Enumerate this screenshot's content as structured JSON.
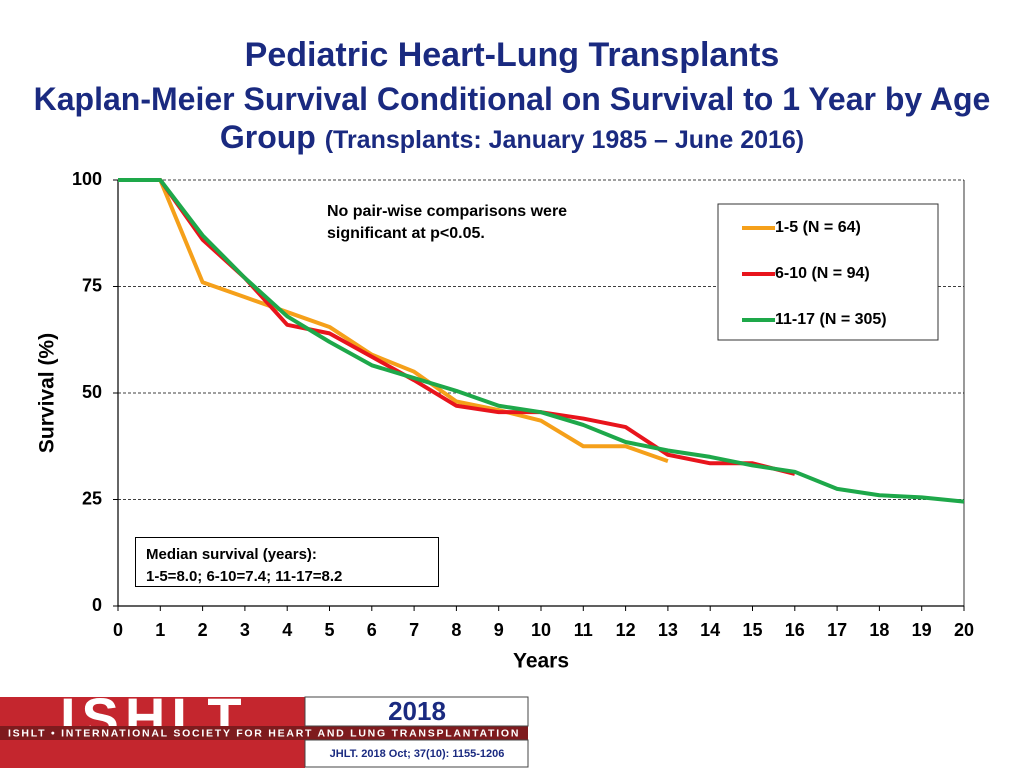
{
  "chart_data": {
    "type": "line",
    "title": "Pediatric Heart-Lung Transplants",
    "subtitle": "Kaplan-Meier Survival Conditional on Survival to 1 Year by Age Group",
    "subtitle_note": "(Transplants: January 1985 – June 2016)",
    "x_label": "Years",
    "y_label": "Survival (%)",
    "x": [
      0,
      1,
      2,
      3,
      4,
      5,
      6,
      7,
      8,
      9,
      10,
      11,
      12,
      13,
      14,
      15,
      16,
      17,
      18,
      19,
      20
    ],
    "series": [
      {
        "name": "1-5 (N = 64)",
        "color": "#f5a01a",
        "values": [
          100,
          100,
          76,
          72.5,
          69,
          65.5,
          59,
          55,
          48,
          46,
          43.5,
          37.5,
          37.5,
          34,
          null,
          null,
          null,
          null,
          null,
          null,
          null
        ]
      },
      {
        "name": "6-10 (N = 94)",
        "color": "#e8141c",
        "values": [
          100,
          100,
          86,
          77,
          66,
          64,
          58.5,
          53,
          47,
          45.5,
          45.5,
          44,
          42,
          35.5,
          33.5,
          33.5,
          31,
          null,
          null,
          null,
          null
        ]
      },
      {
        "name": "11-17 (N = 305)",
        "color": "#1ea84a",
        "values": [
          100,
          100,
          87,
          77,
          68,
          62,
          56.5,
          53.5,
          50.5,
          47,
          45.5,
          42.5,
          38.5,
          36.5,
          35,
          33,
          31.5,
          27.5,
          26,
          25.5,
          24.5
        ]
      }
    ],
    "xlim": [
      0,
      20
    ],
    "xticks": [
      0,
      1,
      2,
      3,
      4,
      5,
      6,
      7,
      8,
      9,
      10,
      11,
      12,
      13,
      14,
      15,
      16,
      17,
      18,
      19,
      20
    ],
    "ylim": [
      0,
      100
    ],
    "yticks": [
      0,
      25,
      50,
      75,
      100
    ],
    "grid": true,
    "legend": "upper right",
    "annotations": [
      "No pair-wise comparisons were significant at p<0.05.",
      "Median survival (years):",
      "1-5=8.0; 6-10=7.4; 11-17=8.2"
    ]
  },
  "footer": {
    "logo": "ISHLT",
    "society": "ISHLT • INTERNATIONAL SOCIETY FOR HEART AND LUNG TRANSPLANTATION",
    "year": "2018",
    "citation": "JHLT. 2018 Oct; 37(10): 1155-1206"
  }
}
